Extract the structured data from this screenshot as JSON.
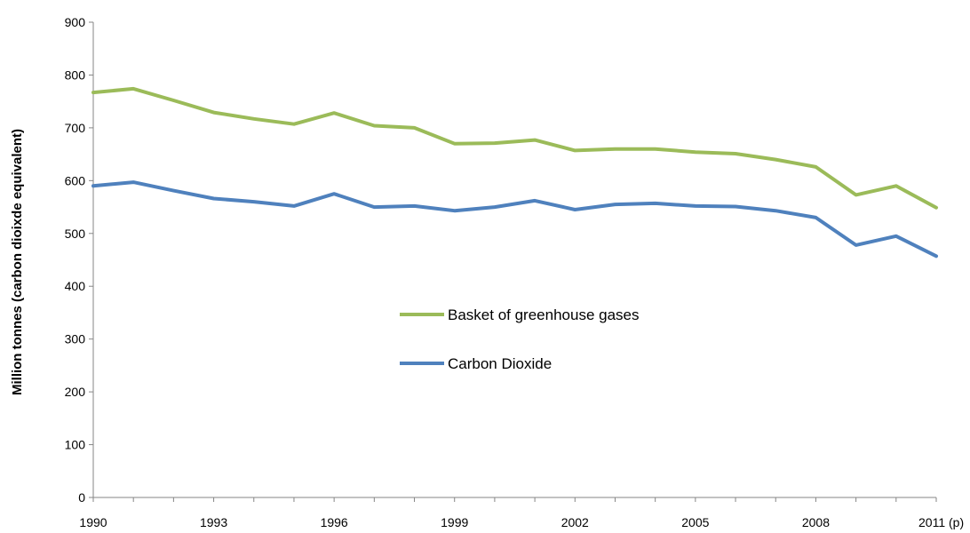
{
  "chart_data": {
    "type": "line",
    "title": "",
    "xlabel": "",
    "ylabel": "Million tonnes (carbon dioixde equivalent)",
    "ylim": [
      0,
      900
    ],
    "yticks": [
      0,
      100,
      200,
      300,
      400,
      500,
      600,
      700,
      800,
      900
    ],
    "grid": false,
    "legend_position": "center",
    "x": [
      1990,
      1991,
      1992,
      1993,
      1994,
      1995,
      1996,
      1997,
      1998,
      1999,
      2000,
      2001,
      2002,
      2003,
      2004,
      2005,
      2006,
      2007,
      2008,
      2009,
      2010,
      2011
    ],
    "xtick_labels": [
      "1990",
      "",
      "",
      "1993",
      "",
      "",
      "1996",
      "",
      "",
      "1999",
      "",
      "",
      "2002",
      "",
      "",
      "2005",
      "",
      "",
      "2008",
      "",
      "",
      "2011 (p)"
    ],
    "series": [
      {
        "name": "Basket of greenhouse gases",
        "color": "#9bbb59",
        "values": [
          767,
          774,
          752,
          729,
          717,
          707,
          728,
          704,
          700,
          670,
          671,
          677,
          657,
          660,
          660,
          654,
          651,
          640,
          626,
          573,
          590,
          549
        ]
      },
      {
        "name": "Carbon Dioxide",
        "color": "#4f81bd",
        "values": [
          590,
          597,
          581,
          566,
          560,
          552,
          575,
          550,
          552,
          543,
          550,
          562,
          545,
          555,
          557,
          552,
          551,
          543,
          530,
          478,
          495,
          457
        ]
      }
    ]
  }
}
